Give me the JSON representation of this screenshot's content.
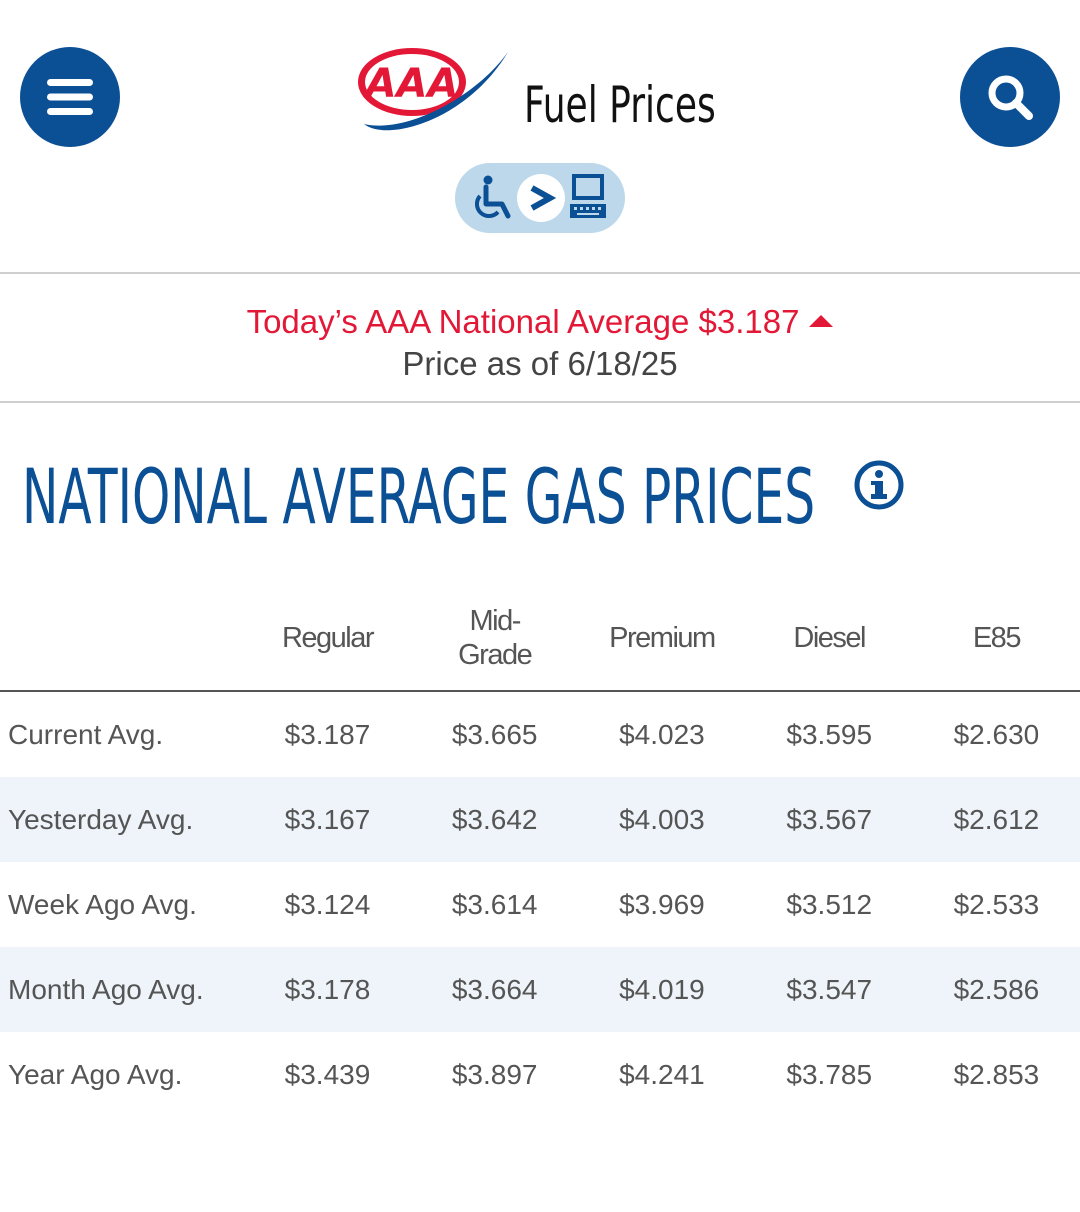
{
  "header": {
    "brand_logo_text": "AAA",
    "title": "Fuel Prices"
  },
  "banner": {
    "national_average_text": "Today’s AAA National Average $3.187",
    "trend": "up",
    "price_date_text": "Price as of 6/18/25"
  },
  "section": {
    "title": "NATIONAL AVERAGE GAS PRICES"
  },
  "table": {
    "columns": [
      {
        "label_line1": "Regular",
        "label_line2": ""
      },
      {
        "label_line1": "Mid-",
        "label_line2": "Grade"
      },
      {
        "label_line1": "Premium",
        "label_line2": ""
      },
      {
        "label_line1": "Diesel",
        "label_line2": ""
      },
      {
        "label_line1": "E85",
        "label_line2": ""
      }
    ],
    "rows": [
      {
        "label": "Current Avg.",
        "values": [
          "$3.187",
          "$3.665",
          "$4.023",
          "$3.595",
          "$2.630"
        ]
      },
      {
        "label": "Yesterday Avg.",
        "values": [
          "$3.167",
          "$3.642",
          "$4.003",
          "$3.567",
          "$2.612"
        ]
      },
      {
        "label": "Week Ago Avg.",
        "values": [
          "$3.124",
          "$3.614",
          "$3.969",
          "$3.512",
          "$2.533"
        ]
      },
      {
        "label": "Month Ago Avg.",
        "values": [
          "$3.178",
          "$3.664",
          "$4.019",
          "$3.547",
          "$2.586"
        ]
      },
      {
        "label": "Year Ago Avg.",
        "values": [
          "$3.439",
          "$3.897",
          "$4.241",
          "$3.785",
          "$2.853"
        ]
      }
    ]
  },
  "colors": {
    "brand_blue": "#0b4f95",
    "accent_red": "#e31837",
    "row_alt_bg": "#eef4f9"
  },
  "icons": {
    "menu": "hamburger-menu-icon",
    "search": "magnifier-search-icon",
    "info": "info-circle-icon",
    "accessibility": "wheelchair-to-computer-icon"
  }
}
